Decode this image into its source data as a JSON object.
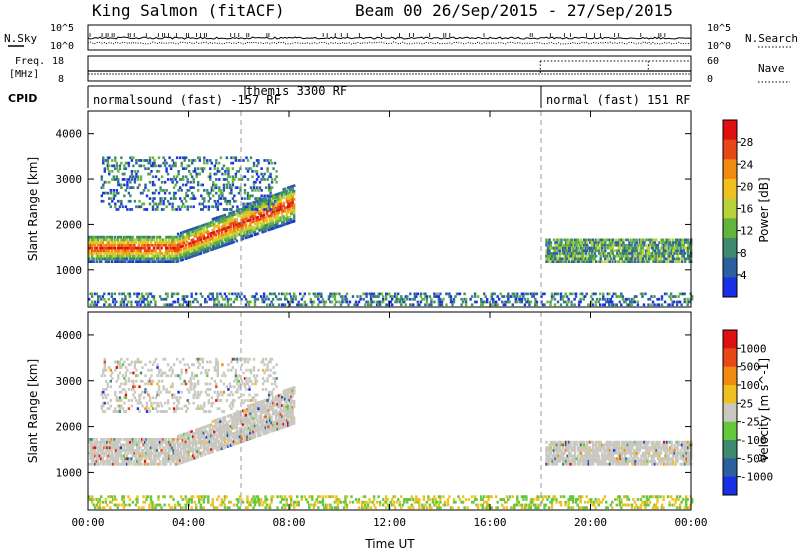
{
  "header": {
    "station": "King Salmon (fitACF)",
    "beam": "Beam 00  26/Sep/2015 - 27/Sep/2015"
  },
  "strip_panels": {
    "nsky": {
      "label": "N.Sky",
      "ticks": [
        "10^5",
        "10^0"
      ],
      "right_label": "N.Search",
      "right_ticks": [
        "10^5",
        "10^0"
      ]
    },
    "freq": {
      "label_line1": "Freq.",
      "label_line2": "[MHz]",
      "ticks": [
        "18",
        "8"
      ],
      "right_label": "Nave",
      "right_ticks": [
        "60",
        "0"
      ]
    },
    "cpid": {
      "label": "CPID",
      "segments": [
        {
          "text": "normalsound (fast) -157 RF",
          "start": 0
        },
        {
          "text": "themis 3300 RF",
          "start": 6.25
        },
        {
          "text": "normal (fast) 151 RF",
          "start": 18.0
        }
      ]
    }
  },
  "x_axis": {
    "label": "Time UT",
    "ticks": [
      "00:00",
      "04:00",
      "08:00",
      "12:00",
      "16:00",
      "20:00",
      "00:00"
    ]
  },
  "panels": {
    "power": {
      "ylabel": "Slant Range [km]",
      "yticks": [
        "4000",
        "3000",
        "2000",
        "1000"
      ],
      "colorbar_label": "Power [dB]",
      "colorbar_ticks": [
        "28",
        "24",
        "20",
        "16",
        "12",
        "8",
        "4"
      ],
      "colors": [
        "#1a30e6",
        "#2c5fa0",
        "#3d8a6e",
        "#63b43c",
        "#b8d23a",
        "#f0c020",
        "#f08a10",
        "#e84818",
        "#e01010"
      ]
    },
    "velocity": {
      "ylabel": "Slant Range [km]",
      "yticks": [
        "4000",
        "3000",
        "2000",
        "1000"
      ],
      "colorbar_label": "Velocity [m s^-1]",
      "colorbar_ticks": [
        "1000",
        "500",
        "100",
        "25",
        "-25",
        "-100",
        "-500",
        "-1000"
      ],
      "colors": [
        "#1a30e6",
        "#2c5fa0",
        "#3d8a6e",
        "#63c83a",
        "#c8c8c0",
        "#f0c020",
        "#f08a10",
        "#e84818",
        "#e01010"
      ]
    }
  },
  "chart_data": {
    "type": "heatmap",
    "title": "King Salmon (fitACF)",
    "subtitle": "Beam 00  26/Sep/2015 - 27/Sep/2015",
    "xlabel": "Time UT",
    "ylabel": "Slant Range [km]",
    "xlim": [
      0,
      24
    ],
    "ylim": [
      180,
      4500
    ],
    "mode_changes_hours": [
      6.0,
      18.0
    ],
    "scatter_regions": [
      {
        "name": "main band",
        "t_start": 0,
        "t_end": 8.2,
        "range_start_km": 1350,
        "range_end_km": 2400,
        "power_db": 20
      },
      {
        "name": "upper patches",
        "t_start": 0.5,
        "t_end": 7.5,
        "range_start_km": 2300,
        "range_end_km": 3500,
        "power_db": 10
      },
      {
        "name": "late band",
        "t_start": 18.2,
        "t_end": 24,
        "range_start_km": 1150,
        "range_end_km": 1650,
        "power_db": 12
      },
      {
        "name": "near-range echoes",
        "t_start": 0,
        "t_end": 24,
        "range_start_km": 200,
        "range_end_km": 500,
        "power_db": 6
      }
    ],
    "power_colorbar": {
      "label": "Power [dB]",
      "ticks": [
        28,
        24,
        20,
        16,
        12,
        8,
        4
      ]
    },
    "velocity_colorbar": {
      "label": "Velocity [m s^-1]",
      "ticks": [
        1000,
        500,
        100,
        25,
        -25,
        -100,
        -500,
        -1000
      ]
    }
  }
}
